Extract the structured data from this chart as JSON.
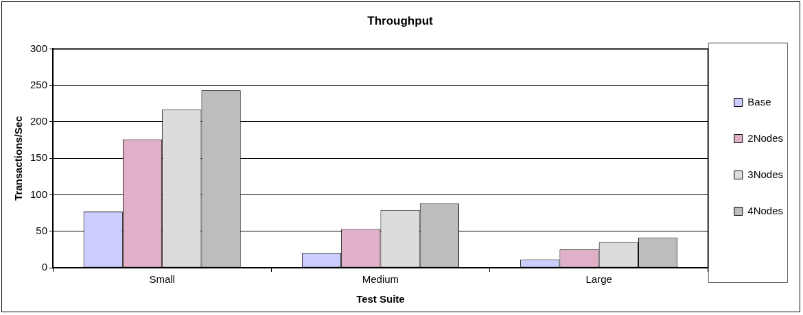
{
  "chart_data": {
    "type": "bar",
    "title": "Throughput",
    "xlabel": "Test Suite",
    "ylabel": "Transactions/Sec",
    "categories": [
      "Small",
      "Medium",
      "Large"
    ],
    "series": [
      {
        "name": "Base",
        "color": "#ccccff",
        "values": [
          77,
          20,
          11
        ]
      },
      {
        "name": "2Nodes",
        "color": "#dfb0c8",
        "values": [
          176,
          53,
          25
        ]
      },
      {
        "name": "3Nodes",
        "color": "#dcdcdc",
        "values": [
          217,
          79,
          35
        ]
      },
      {
        "name": "4Nodes",
        "color": "#bdbdbd",
        "values": [
          243,
          88,
          41
        ]
      }
    ],
    "ylim": [
      0,
      300
    ],
    "yticks": [
      0,
      50,
      100,
      150,
      200,
      250,
      300
    ],
    "grid": "y",
    "legend": "right"
  }
}
